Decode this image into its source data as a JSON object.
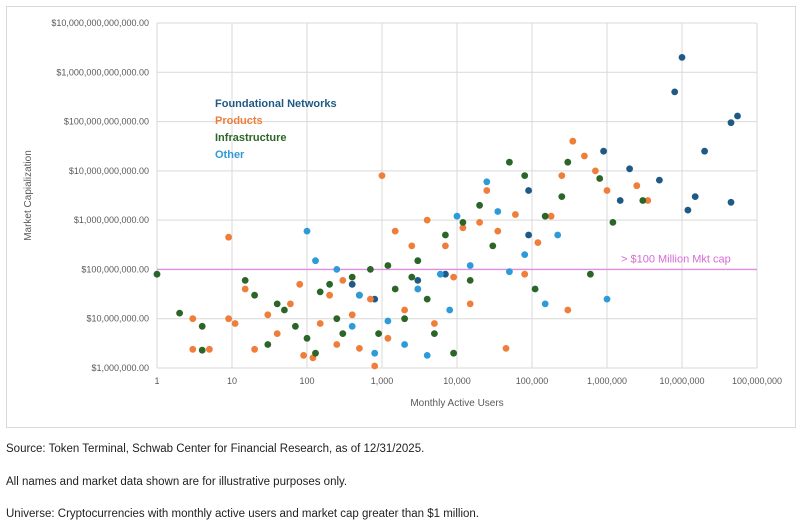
{
  "chart_data": {
    "type": "scatter",
    "title": "",
    "xlabel": "Monthly Active Users",
    "ylabel": "Market Capialization",
    "xscale": "log",
    "yscale": "log",
    "xlim": [
      1,
      100000000
    ],
    "ylim": [
      1000000,
      10000000000000
    ],
    "grid": true,
    "legend_position": "left",
    "x_tick_labels": [
      "1",
      "10",
      "100",
      "1,000",
      "10,000",
      "100,000",
      "1,000,000",
      "10,000,000",
      "100,000,000"
    ],
    "y_tick_labels": [
      "$1,000,000.00",
      "$10,000,000.00",
      "$100,000,000.00",
      "$1,000,000,000.00",
      "$10,000,000,000.00",
      "$100,000,000,000.00",
      "$1,000,000,000,000.00",
      "$10,000,000,000,000.00"
    ],
    "reference_line": {
      "value": 100000000,
      "label": "> $100 Million Mkt cap",
      "color": "#e08ee0"
    },
    "series": [
      {
        "name": "Foundational Networks",
        "color": "#1f5a86",
        "points": [
          [
            10000000,
            2000000000000
          ],
          [
            8000000,
            400000000000
          ],
          [
            55000000,
            130000000000
          ],
          [
            45000000,
            95000000000
          ],
          [
            20000000,
            25000000000
          ],
          [
            5000000,
            6500000000
          ],
          [
            15000000,
            3000000000
          ],
          [
            45000000,
            2300000000
          ],
          [
            12000000,
            1600000000
          ],
          [
            2000000,
            11000000000
          ],
          [
            900000,
            25000000000
          ],
          [
            1500000,
            2500000000
          ],
          [
            90000,
            4000000000
          ],
          [
            90000,
            500000000
          ],
          [
            7000,
            80000000
          ],
          [
            3000,
            60000000
          ],
          [
            800,
            25000000
          ],
          [
            400,
            50000000
          ]
        ]
      },
      {
        "name": "Products",
        "color": "#ee7e3a",
        "points": [
          [
            9,
            450000000
          ],
          [
            3,
            10000000
          ],
          [
            3,
            2400000
          ],
          [
            5,
            2400000
          ],
          [
            9,
            10000000
          ],
          [
            11,
            8000000
          ],
          [
            15,
            40000000
          ],
          [
            20,
            2400000
          ],
          [
            30,
            12000000
          ],
          [
            40,
            5000000
          ],
          [
            60,
            20000000
          ],
          [
            80,
            50000000
          ],
          [
            90,
            1800000
          ],
          [
            120,
            1600000
          ],
          [
            150,
            8000000
          ],
          [
            200,
            30000000
          ],
          [
            250,
            3000000
          ],
          [
            300,
            60000000
          ],
          [
            400,
            12000000
          ],
          [
            500,
            2500000
          ],
          [
            700,
            25000000
          ],
          [
            800,
            1100000
          ],
          [
            1000,
            8000000000
          ],
          [
            1200,
            4000000
          ],
          [
            1500,
            600000000
          ],
          [
            2000,
            15000000
          ],
          [
            2500,
            300000000
          ],
          [
            3000,
            40000000
          ],
          [
            4000,
            1000000000
          ],
          [
            5000,
            8000000
          ],
          [
            7000,
            300000000
          ],
          [
            9000,
            70000000
          ],
          [
            12000,
            700000000
          ],
          [
            15000,
            20000000
          ],
          [
            20000,
            900000000
          ],
          [
            25000,
            4000000000
          ],
          [
            35000,
            600000000
          ],
          [
            45000,
            2500000
          ],
          [
            60000,
            1300000000
          ],
          [
            80000,
            80000000
          ],
          [
            120000,
            350000000
          ],
          [
            180000,
            1200000000
          ],
          [
            250000,
            8000000000
          ],
          [
            300000,
            15000000
          ],
          [
            350000,
            40000000000
          ],
          [
            500000,
            20000000000
          ],
          [
            700000,
            10000000000
          ],
          [
            1000000,
            4000000000
          ],
          [
            2500000,
            5000000000
          ],
          [
            3500000,
            2500000000
          ]
        ]
      },
      {
        "name": "Infrastructure",
        "color": "#2b6628",
        "points": [
          [
            1,
            80000000
          ],
          [
            2,
            13000000
          ],
          [
            4,
            7000000
          ],
          [
            4,
            2300000
          ],
          [
            15,
            60000000
          ],
          [
            20,
            30000000
          ],
          [
            30,
            3000000
          ],
          [
            40,
            20000000
          ],
          [
            50,
            15000000
          ],
          [
            70,
            7000000
          ],
          [
            100,
            4000000
          ],
          [
            130,
            2000000
          ],
          [
            150,
            35000000
          ],
          [
            200,
            50000000
          ],
          [
            250,
            10000000
          ],
          [
            300,
            5000000
          ],
          [
            400,
            70000000
          ],
          [
            500,
            30000000
          ],
          [
            700,
            100000000
          ],
          [
            900,
            5000000
          ],
          [
            1200,
            120000000
          ],
          [
            1500,
            40000000
          ],
          [
            2000,
            10000000
          ],
          [
            2500,
            70000000
          ],
          [
            3000,
            150000000
          ],
          [
            4000,
            25000000
          ],
          [
            5000,
            5000000
          ],
          [
            7000,
            500000000
          ],
          [
            9000,
            2000000
          ],
          [
            12000,
            900000000
          ],
          [
            15000,
            60000000
          ],
          [
            20000,
            2000000000
          ],
          [
            30000,
            300000000
          ],
          [
            50000,
            15000000000
          ],
          [
            80000,
            8000000000
          ],
          [
            110000,
            40000000
          ],
          [
            150000,
            1200000000
          ],
          [
            250000,
            3000000000
          ],
          [
            300000,
            15000000000
          ],
          [
            600000,
            80000000
          ],
          [
            800000,
            7000000000
          ],
          [
            1200000,
            900000000
          ],
          [
            3000000,
            2500000000
          ]
        ]
      },
      {
        "name": "Other",
        "color": "#2e9bd8",
        "points": [
          [
            100,
            600000000
          ],
          [
            130,
            150000000
          ],
          [
            250,
            100000000
          ],
          [
            400,
            7000000
          ],
          [
            500,
            30000000
          ],
          [
            800,
            2000000
          ],
          [
            1200,
            9000000
          ],
          [
            2000,
            3000000
          ],
          [
            3000,
            40000000
          ],
          [
            4000,
            1800000
          ],
          [
            6000,
            80000000
          ],
          [
            8000,
            15000000
          ],
          [
            10000,
            1200000000
          ],
          [
            15000,
            120000000
          ],
          [
            25000,
            6000000000
          ],
          [
            35000,
            1500000000
          ],
          [
            50000,
            90000000
          ],
          [
            80000,
            200000000
          ],
          [
            150000,
            20000000
          ],
          [
            220000,
            500000000
          ],
          [
            1000000,
            25000000
          ]
        ]
      }
    ]
  },
  "notes": {
    "source": "Source: Token Terminal, Schwab Center for Financial Research, as of 12/31/2025.",
    "illustrative": "All names and market data shown are for illustrative purposes only.",
    "universe": "Universe: Cryptocurrencies with monthly active users and market cap greater than $1 million."
  }
}
